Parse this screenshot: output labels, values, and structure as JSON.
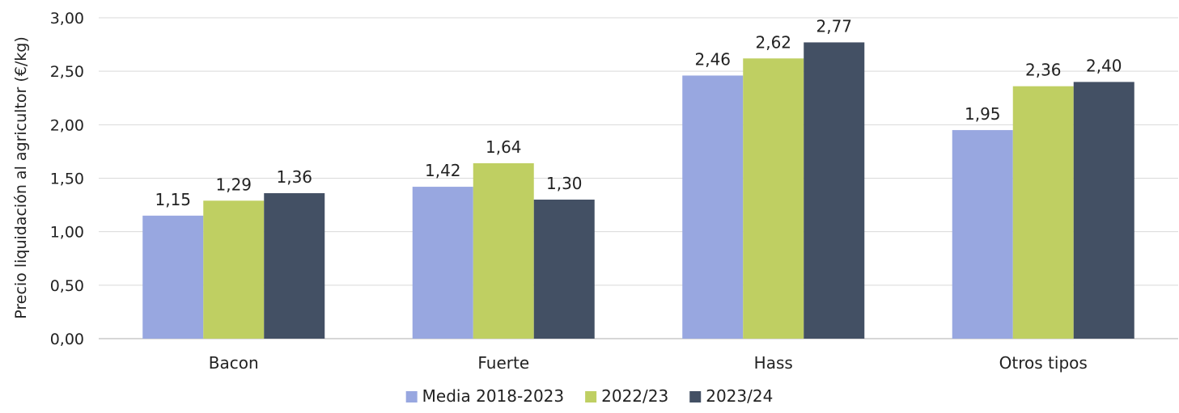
{
  "chart_data": {
    "type": "bar",
    "title": "",
    "xlabel": "",
    "ylabel": "Precio liquidación al agricultor (€/kg)",
    "ylim": [
      0,
      3
    ],
    "ytick_values": [
      0,
      0.5,
      1,
      1.5,
      2,
      2.5,
      3
    ],
    "ytick_labels": [
      "0,00",
      "0,50",
      "1,00",
      "1,50",
      "2,00",
      "2,50",
      "3,00"
    ],
    "categories": [
      "Bacon",
      "Fuerte",
      "Hass",
      "Otros tipos"
    ],
    "grid": true,
    "legend_position": "bottom",
    "series": [
      {
        "name": "Media 2018-2023",
        "color": "#98A7E0",
        "values": [
          1.15,
          1.42,
          2.46,
          1.95
        ],
        "labels": [
          "1,15",
          "1,42",
          "2,46",
          "1,95"
        ]
      },
      {
        "name": "2022/23",
        "color": "#BFCF62",
        "values": [
          1.29,
          1.64,
          2.62,
          2.36
        ],
        "labels": [
          "1,29",
          "1,64",
          "2,62",
          "2,36"
        ]
      },
      {
        "name": "2023/24",
        "color": "#435064",
        "values": [
          1.36,
          1.3,
          2.77,
          2.4
        ],
        "labels": [
          "1,36",
          "1,30",
          "2,77",
          "2,40"
        ]
      }
    ]
  }
}
